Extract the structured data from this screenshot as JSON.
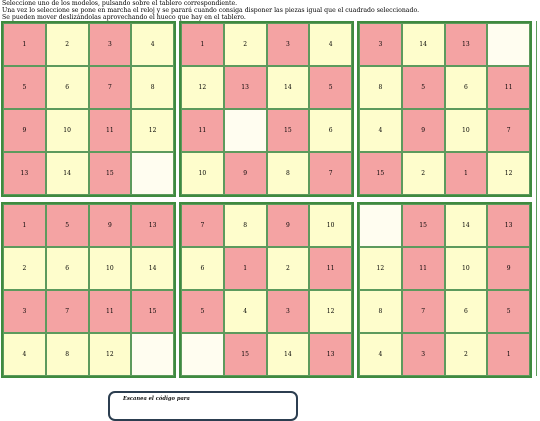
{
  "instructions": [
    "Seleccione uno de los modelos, pulsando sobre el tablero correspondiente.",
    "Una vez lo seleccione se pone en marcha el reloj y se parará cuando consiga disponer las piezas igual que el cuadrado seleccionado.",
    "Se pueden mover deslizándolas aprovechando el hueco que hay en el tablero."
  ],
  "colors": {
    "pink": "#f4a3a3",
    "cream": "#fefdcc",
    "border": "#3f8a3f"
  },
  "boards": [
    {
      "cells": [
        {
          "v": "1",
          "c": "pink"
        },
        {
          "v": "2",
          "c": "cream"
        },
        {
          "v": "3",
          "c": "pink"
        },
        {
          "v": "4",
          "c": "cream"
        },
        {
          "v": "5",
          "c": "pink"
        },
        {
          "v": "6",
          "c": "cream"
        },
        {
          "v": "7",
          "c": "pink"
        },
        {
          "v": "8",
          "c": "cream"
        },
        {
          "v": "9",
          "c": "pink"
        },
        {
          "v": "10",
          "c": "cream"
        },
        {
          "v": "11",
          "c": "pink"
        },
        {
          "v": "12",
          "c": "cream"
        },
        {
          "v": "13",
          "c": "pink"
        },
        {
          "v": "14",
          "c": "cream"
        },
        {
          "v": "15",
          "c": "pink"
        },
        {
          "v": "",
          "c": "empty"
        }
      ]
    },
    {
      "cells": [
        {
          "v": "1",
          "c": "pink"
        },
        {
          "v": "2",
          "c": "cream"
        },
        {
          "v": "3",
          "c": "pink"
        },
        {
          "v": "4",
          "c": "cream"
        },
        {
          "v": "12",
          "c": "cream"
        },
        {
          "v": "13",
          "c": "pink"
        },
        {
          "v": "14",
          "c": "cream"
        },
        {
          "v": "5",
          "c": "pink"
        },
        {
          "v": "11",
          "c": "pink"
        },
        {
          "v": "",
          "c": "empty"
        },
        {
          "v": "15",
          "c": "pink"
        },
        {
          "v": "6",
          "c": "cream"
        },
        {
          "v": "10",
          "c": "cream"
        },
        {
          "v": "9",
          "c": "pink"
        },
        {
          "v": "8",
          "c": "cream"
        },
        {
          "v": "7",
          "c": "pink"
        }
      ]
    },
    {
      "cells": [
        {
          "v": "3",
          "c": "pink"
        },
        {
          "v": "14",
          "c": "cream"
        },
        {
          "v": "13",
          "c": "pink"
        },
        {
          "v": "",
          "c": "empty"
        },
        {
          "v": "8",
          "c": "cream"
        },
        {
          "v": "5",
          "c": "pink"
        },
        {
          "v": "6",
          "c": "cream"
        },
        {
          "v": "11",
          "c": "pink"
        },
        {
          "v": "4",
          "c": "cream"
        },
        {
          "v": "9",
          "c": "pink"
        },
        {
          "v": "10",
          "c": "cream"
        },
        {
          "v": "7",
          "c": "pink"
        },
        {
          "v": "15",
          "c": "pink"
        },
        {
          "v": "2",
          "c": "cream"
        },
        {
          "v": "1",
          "c": "pink"
        },
        {
          "v": "12",
          "c": "cream"
        }
      ]
    },
    {
      "cells": [
        {
          "v": "1",
          "c": "pink"
        },
        {
          "v": "5",
          "c": "pink"
        },
        {
          "v": "9",
          "c": "pink"
        },
        {
          "v": "13",
          "c": "pink"
        },
        {
          "v": "2",
          "c": "cream"
        },
        {
          "v": "6",
          "c": "cream"
        },
        {
          "v": "10",
          "c": "cream"
        },
        {
          "v": "14",
          "c": "cream"
        },
        {
          "v": "3",
          "c": "pink"
        },
        {
          "v": "7",
          "c": "pink"
        },
        {
          "v": "11",
          "c": "pink"
        },
        {
          "v": "15",
          "c": "pink"
        },
        {
          "v": "4",
          "c": "cream"
        },
        {
          "v": "8",
          "c": "cream"
        },
        {
          "v": "12",
          "c": "cream"
        },
        {
          "v": "",
          "c": "empty"
        }
      ]
    },
    {
      "cells": [
        {
          "v": "7",
          "c": "pink"
        },
        {
          "v": "8",
          "c": "cream"
        },
        {
          "v": "9",
          "c": "pink"
        },
        {
          "v": "10",
          "c": "cream"
        },
        {
          "v": "6",
          "c": "cream"
        },
        {
          "v": "1",
          "c": "pink"
        },
        {
          "v": "2",
          "c": "cream"
        },
        {
          "v": "11",
          "c": "pink"
        },
        {
          "v": "5",
          "c": "pink"
        },
        {
          "v": "4",
          "c": "cream"
        },
        {
          "v": "3",
          "c": "pink"
        },
        {
          "v": "12",
          "c": "cream"
        },
        {
          "v": "",
          "c": "empty"
        },
        {
          "v": "15",
          "c": "pink"
        },
        {
          "v": "14",
          "c": "cream"
        },
        {
          "v": "13",
          "c": "pink"
        }
      ]
    },
    {
      "cells": [
        {
          "v": "",
          "c": "empty"
        },
        {
          "v": "15",
          "c": "pink"
        },
        {
          "v": "14",
          "c": "cream"
        },
        {
          "v": "13",
          "c": "pink"
        },
        {
          "v": "12",
          "c": "cream"
        },
        {
          "v": "11",
          "c": "pink"
        },
        {
          "v": "10",
          "c": "cream"
        },
        {
          "v": "9",
          "c": "pink"
        },
        {
          "v": "8",
          "c": "cream"
        },
        {
          "v": "7",
          "c": "pink"
        },
        {
          "v": "6",
          "c": "cream"
        },
        {
          "v": "5",
          "c": "pink"
        },
        {
          "v": "4",
          "c": "cream"
        },
        {
          "v": "3",
          "c": "pink"
        },
        {
          "v": "2",
          "c": "cream"
        },
        {
          "v": "1",
          "c": "pink"
        }
      ]
    }
  ],
  "qr_card": {
    "text": "Escanea el código para"
  }
}
